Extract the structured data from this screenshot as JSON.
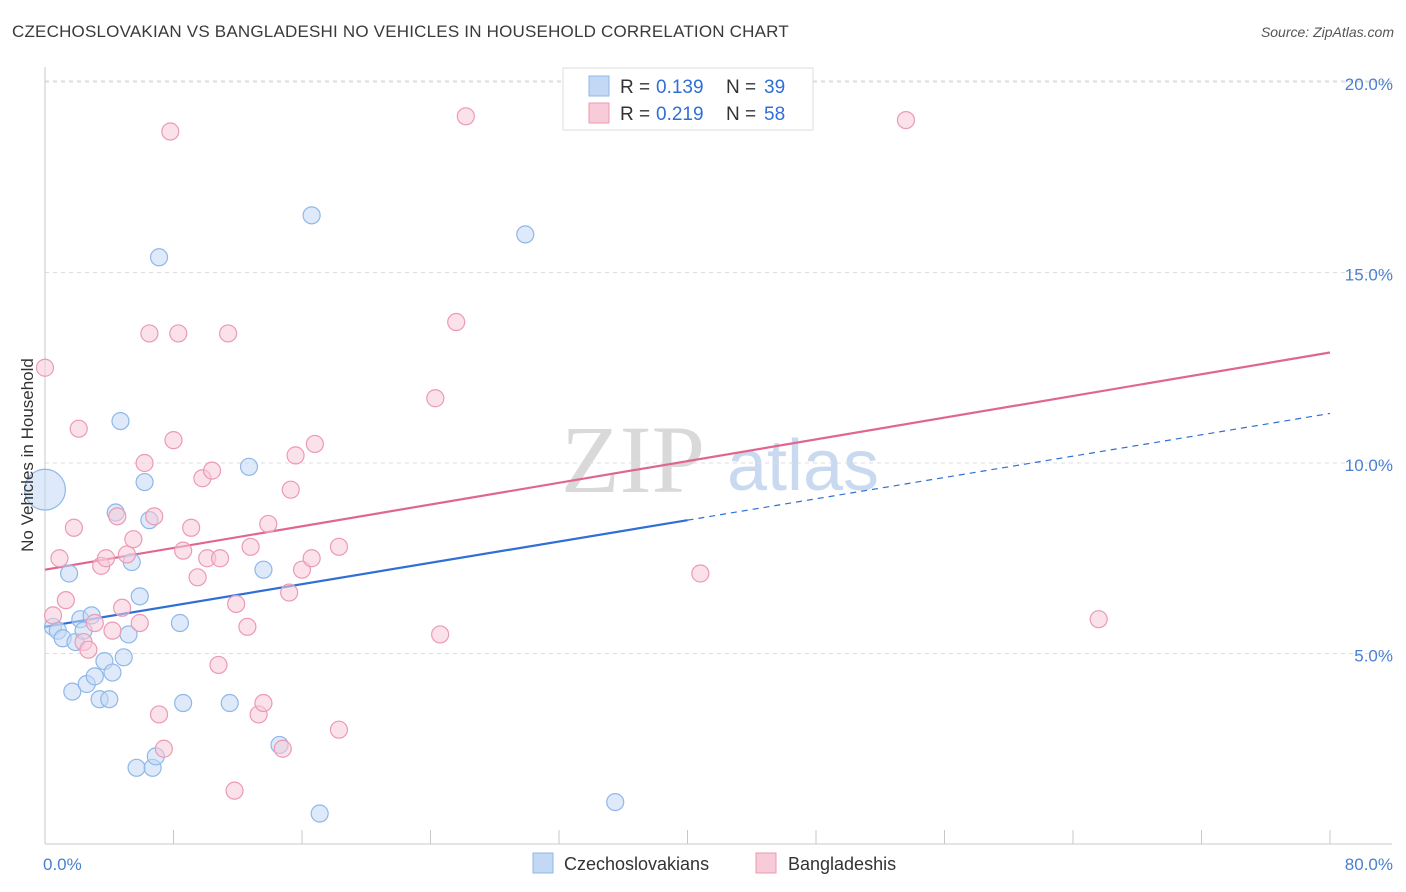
{
  "header": {
    "title": "CZECHOSLOVAKIAN VS BANGLADESHI NO VEHICLES IN HOUSEHOLD CORRELATION CHART",
    "source": "Source: ZipAtlas.com"
  },
  "watermark": {
    "zip": "ZIP",
    "atlas": "atlas"
  },
  "legend": {
    "r_label": "R =",
    "n_label": "N =",
    "rows": [
      {
        "r": "0.139",
        "n": "39",
        "color": "#8fb7ea",
        "fill": "#c3d8f4"
      },
      {
        "r": "0.219",
        "n": "58",
        "color": "#ec9ab4",
        "fill": "#f7cbd8"
      }
    ]
  },
  "bottom_legend": [
    {
      "label": "Czechoslovakians",
      "fill": "#c3d8f4",
      "stroke": "#8fb7ea"
    },
    {
      "label": "Bangladeshis",
      "fill": "#f7cbd8",
      "stroke": "#ec9ab4"
    }
  ],
  "chart_data": {
    "type": "scatter",
    "title": "CZECHOSLOVAKIAN VS BANGLADESHI NO VEHICLES IN HOUSEHOLD CORRELATION CHART",
    "xlabel": "",
    "ylabel": "No Vehicles in Household",
    "xlim": [
      0,
      80
    ],
    "ylim": [
      0,
      20.5
    ],
    "x_tick_labels": [
      "0.0%",
      "80.0%"
    ],
    "y_ticks": [
      5,
      10,
      15,
      20
    ],
    "y_tick_labels": [
      "5.0%",
      "10.0%",
      "15.0%",
      "20.0%"
    ],
    "grid": true,
    "series": [
      {
        "name": "Czechoslovakians",
        "color": "#8fb7ea",
        "fill": "#c3d8f4",
        "trend_color": "#2f6fd6",
        "trend": {
          "x0": 0,
          "y0": 5.7,
          "x1": 40,
          "y1": 8.5,
          "x_end": 80,
          "y_end": 11.3
        },
        "points": [
          {
            "x": 0.0,
            "y": 9.3,
            "s": 2.4
          },
          {
            "x": 0.5,
            "y": 5.7
          },
          {
            "x": 0.8,
            "y": 5.6
          },
          {
            "x": 1.1,
            "y": 5.4
          },
          {
            "x": 1.5,
            "y": 7.1
          },
          {
            "x": 1.7,
            "y": 4.0
          },
          {
            "x": 1.9,
            "y": 5.3
          },
          {
            "x": 2.2,
            "y": 5.9
          },
          {
            "x": 2.4,
            "y": 5.6
          },
          {
            "x": 2.6,
            "y": 4.2
          },
          {
            "x": 2.9,
            "y": 6.0
          },
          {
            "x": 3.1,
            "y": 4.4
          },
          {
            "x": 3.4,
            "y": 3.8
          },
          {
            "x": 3.7,
            "y": 4.8
          },
          {
            "x": 4.0,
            "y": 3.8
          },
          {
            "x": 4.2,
            "y": 4.5
          },
          {
            "x": 4.4,
            "y": 8.7
          },
          {
            "x": 4.7,
            "y": 11.1
          },
          {
            "x": 4.9,
            "y": 4.9
          },
          {
            "x": 5.2,
            "y": 5.5
          },
          {
            "x": 5.4,
            "y": 7.4
          },
          {
            "x": 5.7,
            "y": 2.0
          },
          {
            "x": 5.9,
            "y": 6.5
          },
          {
            "x": 6.2,
            "y": 9.5
          },
          {
            "x": 6.5,
            "y": 8.5
          },
          {
            "x": 6.7,
            "y": 2.0
          },
          {
            "x": 6.9,
            "y": 2.3
          },
          {
            "x": 7.1,
            "y": 15.4
          },
          {
            "x": 8.4,
            "y": 5.8
          },
          {
            "x": 8.6,
            "y": 3.7
          },
          {
            "x": 11.5,
            "y": 3.7
          },
          {
            "x": 12.7,
            "y": 9.9
          },
          {
            "x": 13.6,
            "y": 7.2
          },
          {
            "x": 14.6,
            "y": 2.6
          },
          {
            "x": 16.6,
            "y": 16.5
          },
          {
            "x": 17.1,
            "y": 0.8
          },
          {
            "x": 29.9,
            "y": 16.0
          },
          {
            "x": 35.5,
            "y": 1.1
          }
        ]
      },
      {
        "name": "Bangladeshis",
        "color": "#ec9ab4",
        "fill": "#f7cbd8",
        "trend_color": "#e06690",
        "trend": {
          "x0": 0,
          "y0": 7.2,
          "x1": 80,
          "y1": 12.9
        },
        "points": [
          {
            "x": 0.0,
            "y": 12.5
          },
          {
            "x": 0.5,
            "y": 6.0
          },
          {
            "x": 0.9,
            "y": 7.5
          },
          {
            "x": 1.3,
            "y": 6.4
          },
          {
            "x": 1.8,
            "y": 8.3
          },
          {
            "x": 2.1,
            "y": 10.9
          },
          {
            "x": 2.4,
            "y": 5.3
          },
          {
            "x": 2.7,
            "y": 5.1
          },
          {
            "x": 3.1,
            "y": 5.8
          },
          {
            "x": 3.5,
            "y": 7.3
          },
          {
            "x": 3.8,
            "y": 7.5
          },
          {
            "x": 4.2,
            "y": 5.6
          },
          {
            "x": 4.5,
            "y": 8.6
          },
          {
            "x": 4.8,
            "y": 6.2
          },
          {
            "x": 5.1,
            "y": 7.6
          },
          {
            "x": 5.5,
            "y": 8.0
          },
          {
            "x": 5.9,
            "y": 5.8
          },
          {
            "x": 6.2,
            "y": 10.0
          },
          {
            "x": 6.5,
            "y": 13.4
          },
          {
            "x": 6.8,
            "y": 8.6
          },
          {
            "x": 7.1,
            "y": 3.4
          },
          {
            "x": 7.4,
            "y": 2.5
          },
          {
            "x": 7.8,
            "y": 18.7
          },
          {
            "x": 8.0,
            "y": 10.6
          },
          {
            "x": 8.3,
            "y": 13.4
          },
          {
            "x": 8.6,
            "y": 7.7
          },
          {
            "x": 9.1,
            "y": 8.3
          },
          {
            "x": 9.5,
            "y": 7.0
          },
          {
            "x": 9.8,
            "y": 9.6
          },
          {
            "x": 10.1,
            "y": 7.5
          },
          {
            "x": 10.4,
            "y": 9.8
          },
          {
            "x": 10.8,
            "y": 4.7
          },
          {
            "x": 10.9,
            "y": 7.5
          },
          {
            "x": 11.4,
            "y": 13.4
          },
          {
            "x": 11.8,
            "y": 1.4
          },
          {
            "x": 11.9,
            "y": 6.3
          },
          {
            "x": 12.6,
            "y": 5.7
          },
          {
            "x": 12.8,
            "y": 7.8
          },
          {
            "x": 13.3,
            "y": 3.4
          },
          {
            "x": 13.6,
            "y": 3.7
          },
          {
            "x": 13.9,
            "y": 8.4
          },
          {
            "x": 14.8,
            "y": 2.5
          },
          {
            "x": 15.2,
            "y": 6.6
          },
          {
            "x": 15.3,
            "y": 9.3
          },
          {
            "x": 15.6,
            "y": 10.2
          },
          {
            "x": 16.0,
            "y": 7.2
          },
          {
            "x": 16.6,
            "y": 7.5
          },
          {
            "x": 16.8,
            "y": 10.5
          },
          {
            "x": 18.3,
            "y": 3.0
          },
          {
            "x": 18.3,
            "y": 7.8
          },
          {
            "x": 24.3,
            "y": 11.7
          },
          {
            "x": 24.6,
            "y": 5.5
          },
          {
            "x": 25.6,
            "y": 13.7
          },
          {
            "x": 26.2,
            "y": 19.1
          },
          {
            "x": 40.8,
            "y": 7.1
          },
          {
            "x": 53.6,
            "y": 19.0
          },
          {
            "x": 65.6,
            "y": 5.9
          }
        ]
      }
    ]
  }
}
